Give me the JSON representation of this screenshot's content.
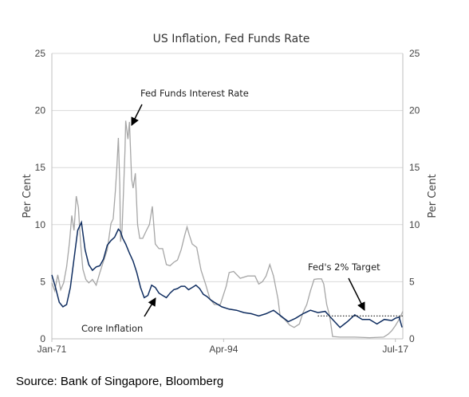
{
  "chart_data": {
    "type": "line",
    "title": "US Inflation, Fed Funds Rate",
    "ylabel_left": "Per Cent",
    "ylabel_right": "Per Cent",
    "ylim": [
      0,
      25
    ],
    "yticks": [
      0,
      5,
      10,
      15,
      20,
      25
    ],
    "xlim": [
      1971.0,
      2018.5
    ],
    "x_ticks": [
      {
        "label": "Jan-71",
        "x": 1971.0
      },
      {
        "label": "Apr-94",
        "x": 1994.25
      },
      {
        "label": "Jul-17",
        "x": 2017.5
      }
    ],
    "grid": true,
    "series": [
      {
        "name": "Fed Funds Interest Rate",
        "color": "#a6a6a6",
        "x": [
          1971.0,
          1971.4,
          1971.8,
          1972.2,
          1972.6,
          1973.0,
          1973.4,
          1973.7,
          1974.0,
          1974.3,
          1974.6,
          1974.9,
          1975.2,
          1975.6,
          1976.0,
          1976.5,
          1977.0,
          1977.5,
          1978.0,
          1978.5,
          1979.0,
          1979.3,
          1979.6,
          1979.8,
          1980.0,
          1980.2,
          1980.3,
          1980.5,
          1980.7,
          1980.9,
          1981.0,
          1981.3,
          1981.5,
          1981.8,
          1982.0,
          1982.3,
          1982.6,
          1982.9,
          1983.3,
          1983.8,
          1984.2,
          1984.6,
          1985.0,
          1985.5,
          1986.0,
          1986.5,
          1987.0,
          1987.5,
          1988.0,
          1988.5,
          1989.0,
          1989.3,
          1989.6,
          1990.0,
          1990.6,
          1991.2,
          1991.8,
          1992.4,
          1993.0,
          1993.8,
          1994.2,
          1994.6,
          1995.0,
          1995.6,
          1996.5,
          1997.5,
          1998.5,
          1999.0,
          1999.5,
          2000.0,
          2000.5,
          2001.0,
          2001.3,
          2001.6,
          2001.9,
          2002.5,
          2003.2,
          2003.8,
          2004.5,
          2005.0,
          2005.5,
          2006.0,
          2006.5,
          2007.0,
          2007.5,
          2007.8,
          2008.2,
          2008.6,
          2009.0,
          2010.0,
          2012.0,
          2014.0,
          2015.9,
          2016.5,
          2017.0,
          2017.5,
          2018.0,
          2018.5
        ],
        "values": [
          4.9,
          4.2,
          5.6,
          4.3,
          4.9,
          6.3,
          8.5,
          10.8,
          9.5,
          12.5,
          11.5,
          8.3,
          6.1,
          5.2,
          4.9,
          5.2,
          4.7,
          5.8,
          6.8,
          7.8,
          10.1,
          10.5,
          13.0,
          15.0,
          17.6,
          13.5,
          8.5,
          9.5,
          13.0,
          16.5,
          19.1,
          17.5,
          19.0,
          14.0,
          13.2,
          14.5,
          10.0,
          8.8,
          8.8,
          9.5,
          10.0,
          11.6,
          8.3,
          7.9,
          7.9,
          6.5,
          6.4,
          6.7,
          6.9,
          7.8,
          9.1,
          9.8,
          9.1,
          8.3,
          8.0,
          6.0,
          4.8,
          3.5,
          3.0,
          3.0,
          3.8,
          4.6,
          5.8,
          5.9,
          5.3,
          5.5,
          5.5,
          4.8,
          5.0,
          5.5,
          6.5,
          5.5,
          4.5,
          3.5,
          2.0,
          1.7,
          1.2,
          1.0,
          1.3,
          2.3,
          3.0,
          4.2,
          5.2,
          5.25,
          5.25,
          4.8,
          3.0,
          2.0,
          0.2,
          0.15,
          0.15,
          0.1,
          0.15,
          0.4,
          0.7,
          1.15,
          1.7,
          2.4
        ]
      },
      {
        "name": "Core Inflation",
        "color": "#0f2d60",
        "x": [
          1971.0,
          1971.5,
          1972.0,
          1972.5,
          1973.0,
          1973.5,
          1974.0,
          1974.5,
          1975.0,
          1975.5,
          1976.0,
          1976.5,
          1977.0,
          1977.5,
          1978.0,
          1978.5,
          1979.0,
          1979.5,
          1980.0,
          1980.3,
          1980.6,
          1981.0,
          1981.5,
          1982.0,
          1982.5,
          1983.0,
          1983.5,
          1984.0,
          1984.5,
          1985.0,
          1985.5,
          1986.0,
          1986.5,
          1987.0,
          1987.5,
          1988.0,
          1988.5,
          1989.0,
          1989.5,
          1990.0,
          1990.5,
          1991.0,
          1991.5,
          1992.0,
          1992.5,
          1993.0,
          1994.0,
          1995.0,
          1996.0,
          1997.0,
          1998.0,
          1999.0,
          2000.0,
          2001.0,
          2002.0,
          2003.0,
          2004.0,
          2005.0,
          2006.0,
          2007.0,
          2008.0,
          2009.0,
          2010.0,
          2011.0,
          2012.0,
          2013.0,
          2014.0,
          2015.0,
          2016.0,
          2017.0,
          2017.5,
          2018.0,
          2018.4
        ],
        "values": [
          5.6,
          4.5,
          3.2,
          2.8,
          3.0,
          4.5,
          7.0,
          9.5,
          10.2,
          7.8,
          6.5,
          6.0,
          6.3,
          6.4,
          7.0,
          8.2,
          8.6,
          8.9,
          9.6,
          9.4,
          8.8,
          8.3,
          7.5,
          6.8,
          5.8,
          4.5,
          3.6,
          3.8,
          4.7,
          4.5,
          4.0,
          3.8,
          3.6,
          4.0,
          4.3,
          4.4,
          4.6,
          4.6,
          4.3,
          4.5,
          4.7,
          4.4,
          3.9,
          3.7,
          3.4,
          3.2,
          2.8,
          2.6,
          2.5,
          2.3,
          2.2,
          2.0,
          2.2,
          2.5,
          2.0,
          1.5,
          1.8,
          2.2,
          2.5,
          2.3,
          2.4,
          1.7,
          1.0,
          1.5,
          2.1,
          1.7,
          1.7,
          1.3,
          1.7,
          1.6,
          1.8,
          1.9,
          1.0
        ]
      }
    ],
    "reference_line": {
      "name": "Fed's 2% Target",
      "value": 2,
      "x_start": 2007.0,
      "x_end": 2018.5,
      "style": "dotted"
    },
    "annotations": [
      {
        "text": "Fed Funds Interest Rate",
        "points_to": "Fed Funds Interest Rate"
      },
      {
        "text": "Core Inflation",
        "points_to": "Core Inflation"
      },
      {
        "text": "Fed's 2% Target",
        "points_to": "Fed's 2% Target"
      }
    ],
    "source": "Source: Bank of Singapore, Bloomberg"
  }
}
